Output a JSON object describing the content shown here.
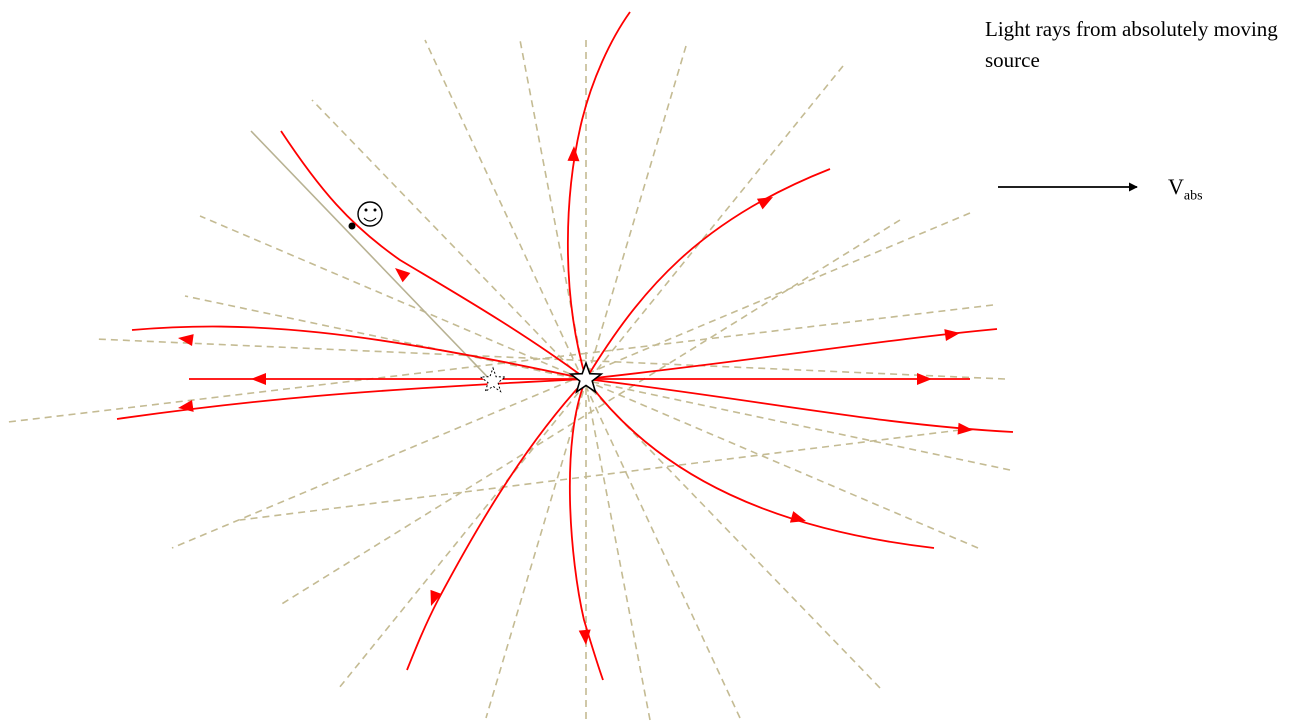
{
  "caption": "Light rays from absolutely moving source",
  "velocity_label": {
    "symbol": "V",
    "subscript": "abs"
  },
  "colors": {
    "ray": "#ff0000",
    "reference_line": "#c4bb93",
    "sight_line": "#b8b293",
    "outline": "#000000"
  },
  "icons": [
    "star-icon",
    "dotted-star-icon",
    "smiley-icon",
    "arrow-right-icon"
  ]
}
